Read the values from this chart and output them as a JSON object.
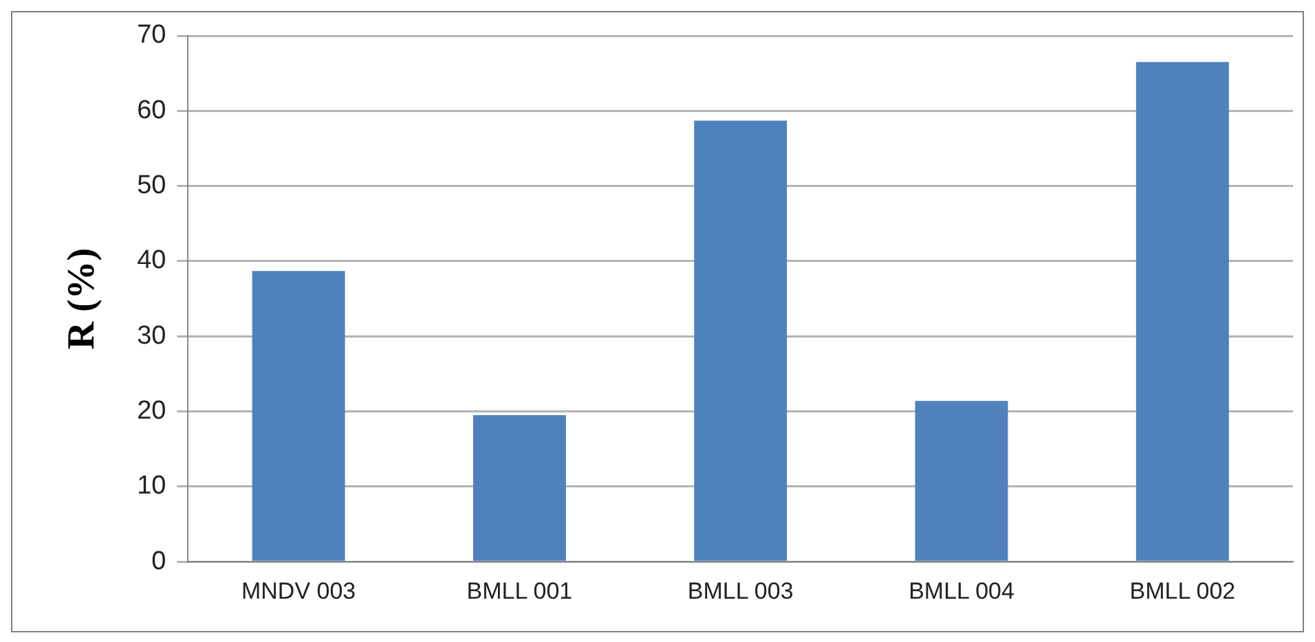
{
  "chart_data": {
    "type": "bar",
    "ylabel": "R (%)",
    "categories": [
      "MNDV 003",
      "BMLL 001",
      "BMLL 003",
      "BMLL 004",
      "BMLL 002"
    ],
    "values": [
      38.7,
      19.5,
      58.7,
      21.4,
      66.5
    ],
    "color": "#4f81bd",
    "ylim": [
      0,
      70
    ],
    "yticks": [
      0,
      10,
      20,
      30,
      40,
      50,
      60,
      70
    ],
    "grid": "y",
    "legend": false
  }
}
